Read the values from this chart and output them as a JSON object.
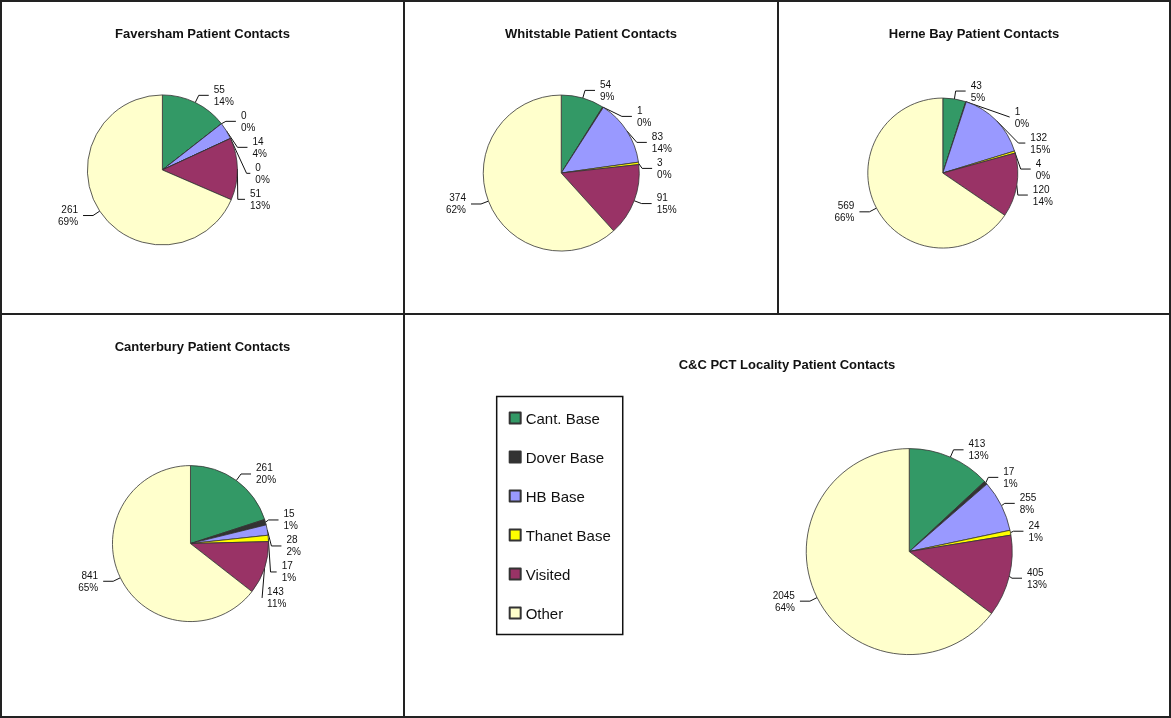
{
  "chart_data": [
    {
      "type": "pie",
      "title": "Faversham Patient Contacts",
      "categories": [
        null,
        null,
        null,
        null,
        null,
        null
      ],
      "values": [
        55,
        0,
        14,
        0,
        51,
        261
      ],
      "value_labels": [
        "55\n14%",
        "0\n0%",
        "14\n4%",
        "0\n0%",
        "51\n13%",
        "261\n69%"
      ],
      "colors": [
        "#339966",
        "#333333",
        "#9999ff",
        "#ffff00",
        "#993366",
        "#ffffcc"
      ],
      "legend": false
    },
    {
      "type": "pie",
      "title": "Whitstable Patient Contacts",
      "categories": [
        null,
        null,
        null,
        null,
        null,
        null
      ],
      "values": [
        54,
        1,
        83,
        3,
        91,
        374
      ],
      "value_labels": [
        "54\n9%",
        "1\n0%",
        "83\n14%",
        "3\n0%",
        "91\n15%",
        "374\n62%"
      ],
      "colors": [
        "#339966",
        "#333333",
        "#9999ff",
        "#ffff00",
        "#993366",
        "#ffffcc"
      ],
      "legend": false
    },
    {
      "type": "pie",
      "title": "Herne Bay Patient Contacts",
      "categories": [
        null,
        null,
        null,
        null,
        null,
        null
      ],
      "values": [
        43,
        1,
        132,
        4,
        120,
        569
      ],
      "value_labels": [
        "43\n5%",
        "1\n0%",
        "132\n15%",
        "4\n0%",
        "120\n14%",
        "569\n66%"
      ],
      "colors": [
        "#339966",
        "#333333",
        "#9999ff",
        "#ffff00",
        "#993366",
        "#ffffcc"
      ],
      "legend": false
    },
    {
      "type": "pie",
      "title": "Canterbury Patient Contacts",
      "categories": [
        null,
        null,
        null,
        null,
        null,
        null
      ],
      "values": [
        261,
        15,
        28,
        17,
        143,
        841
      ],
      "value_labels": [
        "261\n20%",
        "15\n1%",
        "28\n2%",
        "17\n1%",
        "143\n11%",
        "841\n65%"
      ],
      "colors": [
        "#339966",
        "#333333",
        "#9999ff",
        "#ffff00",
        "#993366",
        "#ffffcc"
      ],
      "legend": false
    },
    {
      "type": "pie",
      "title": "C&C PCT Locality Patient Contacts",
      "categories": [
        "Cant. Base",
        "Dover Base",
        "HB Base",
        "Thanet Base",
        "Visited",
        "Other"
      ],
      "values": [
        413,
        17,
        255,
        24,
        405,
        2045
      ],
      "value_labels": [
        "413\n13%",
        "17\n1%",
        "255\n8%",
        "24\n1%",
        "405\n13%",
        "2045\n64%"
      ],
      "colors": [
        "#339966",
        "#333333",
        "#9999ff",
        "#ffff00",
        "#993366",
        "#ffffcc"
      ],
      "legend": "left"
    }
  ]
}
